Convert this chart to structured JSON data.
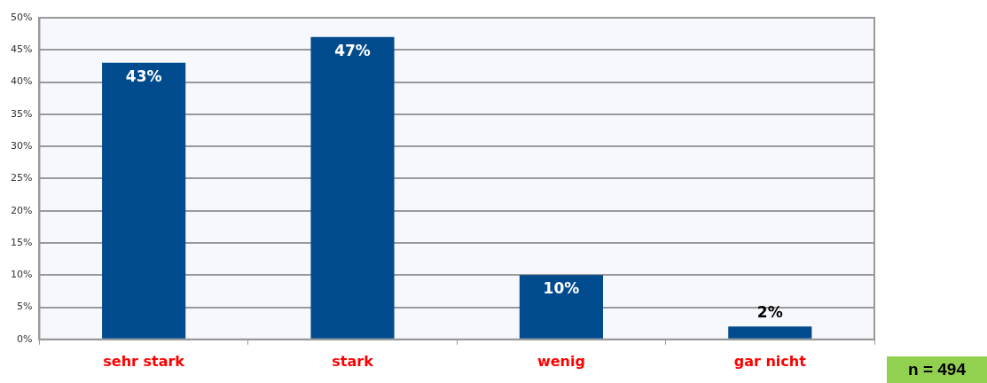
{
  "chart_data": {
    "type": "bar",
    "categories": [
      "sehr stark",
      "stark",
      "wenig",
      "gar nicht"
    ],
    "values": [
      43,
      47,
      10,
      2
    ],
    "color": "#004b8d",
    "ylim": [
      0,
      50
    ],
    "yticks": [
      {
        "value": 0,
        "label": "0%"
      },
      {
        "value": 5,
        "label": "5%"
      },
      {
        "value": 10,
        "label": "10%"
      },
      {
        "value": 15,
        "label": "15%"
      },
      {
        "value": 20,
        "label": "20%"
      },
      {
        "value": 25,
        "label": "25%"
      },
      {
        "value": 30,
        "label": "30%"
      },
      {
        "value": 35,
        "label": "35%"
      },
      {
        "value": 40,
        "label": "40%"
      },
      {
        "value": 45,
        "label": "45%"
      },
      {
        "value": 50,
        "label": "50%"
      }
    ],
    "value_labels": [
      "43%",
      "47%",
      "10%",
      "2%"
    ],
    "grid": "y",
    "legend": false,
    "annotations": [
      "n = 494"
    ]
  }
}
